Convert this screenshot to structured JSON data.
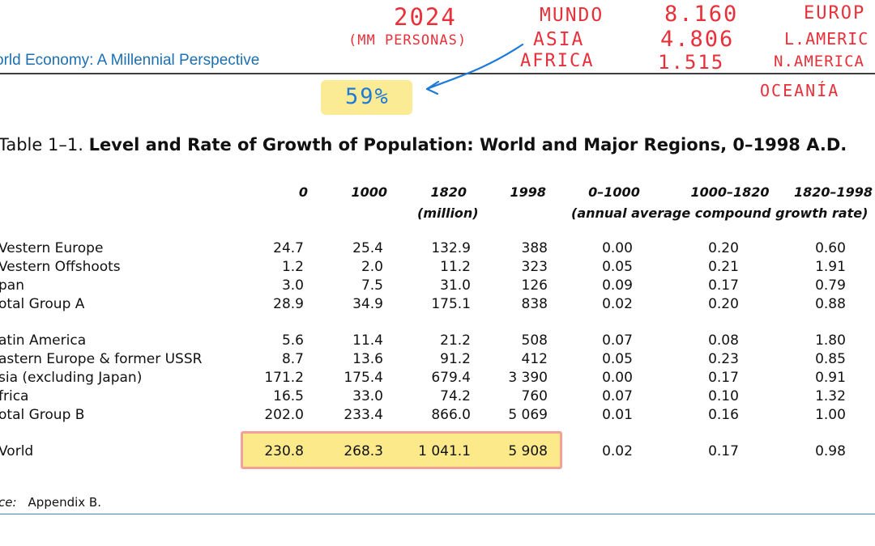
{
  "running_header": "orld Economy: A Millennial Perspective",
  "annotations": {
    "year": "2024",
    "unit": "(MM PERSONAS)",
    "regions": [
      "MUNDO",
      "ASIA",
      "AFRICA"
    ],
    "values": [
      "8.160",
      "4.806",
      "1.515"
    ],
    "continents": [
      "EUROP",
      "L.AMERIC",
      "N.AMERICA",
      "OCEANÍA"
    ],
    "percent": "59%",
    "colors": {
      "ink_red": "#e8303a",
      "ink_blue": "#1e7ad8",
      "highlight": "#fbe98a"
    }
  },
  "table": {
    "title_prefix": "Table 1–1. ",
    "title_bold": "Level and Rate of Growth of Population: World and Major Regions, 0–1998 A.D.",
    "columns": [
      "0",
      "1000",
      "1820",
      "1998",
      "0–1000",
      "1000–1820",
      "1820–1998"
    ],
    "level_unit": "(million)",
    "rate_unit": "(annual average compound growth rate)",
    "rows": [
      {
        "label": "Vestern Europe",
        "values": [
          "24.7",
          "25.4",
          "132.9",
          "388",
          "0.00",
          "0.20",
          "0.60"
        ]
      },
      {
        "label": "Vestern Offshoots",
        "values": [
          "1.2",
          "2.0",
          "11.2",
          "323",
          "0.05",
          "0.21",
          "1.91"
        ]
      },
      {
        "label": "pan",
        "values": [
          "3.0",
          "7.5",
          "31.0",
          "126",
          "0.09",
          "0.17",
          "0.79"
        ]
      },
      {
        "label": "otal Group A",
        "values": [
          "28.9",
          "34.9",
          "175.1",
          "838",
          "0.02",
          "0.20",
          "0.88"
        ]
      },
      {
        "label": "atin America",
        "values": [
          "5.6",
          "11.4",
          "21.2",
          "508",
          "0.07",
          "0.08",
          "1.80"
        ]
      },
      {
        "label": "astern Europe & former USSR",
        "values": [
          "8.7",
          "13.6",
          "91.2",
          "412",
          "0.05",
          "0.23",
          "0.85"
        ]
      },
      {
        "label": "sia (excluding Japan)",
        "values": [
          "171.2",
          "175.4",
          "679.4",
          "3 390",
          "0.00",
          "0.17",
          "0.91"
        ]
      },
      {
        "label": "frica",
        "values": [
          "16.5",
          "33.0",
          "74.2",
          "760",
          "0.07",
          "0.10",
          "1.32"
        ]
      },
      {
        "label": "otal Group B",
        "values": [
          "202.0",
          "233.4",
          "866.0",
          "5 069",
          "0.01",
          "0.16",
          "1.00"
        ]
      },
      {
        "label": "Vorld",
        "values": [
          "230.8",
          "268.3",
          "1 041.1",
          "5 908",
          "0.02",
          "0.17",
          "0.98"
        ]
      }
    ]
  },
  "source": {
    "label": "ce:",
    "text": "Appendix B."
  }
}
